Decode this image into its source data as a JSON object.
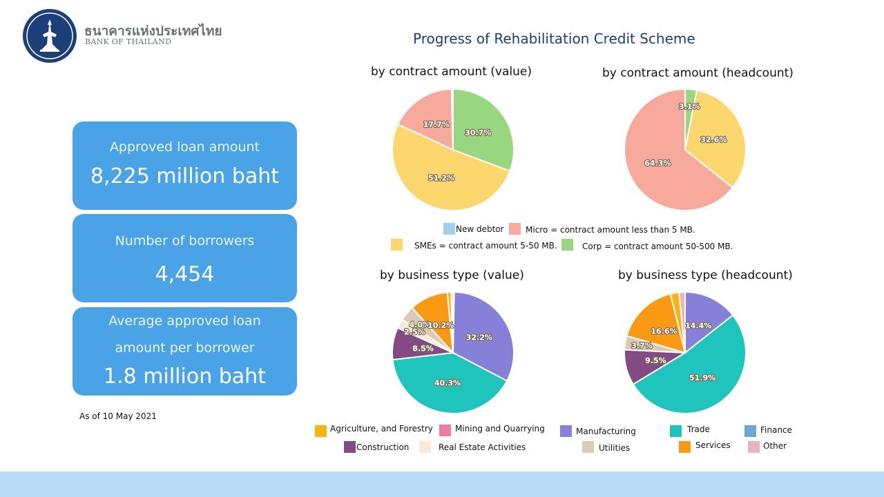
{
  "header": {
    "bank_name_th": "ธนาคารแห่งประเทศไทย",
    "bank_name_en": "BANK OF THAILAND",
    "title": "Progress of Rehabilitation Credit Scheme"
  },
  "stats": [
    {
      "label": "Approved loan amount",
      "value": "8,225 million baht"
    },
    {
      "label": "Number of borrowers",
      "value": "4,454"
    },
    {
      "label_line1": "Average approved loan",
      "label_line2": "amount per borrower",
      "value": "1.8 million baht"
    }
  ],
  "as_of": "As of 10 May 2021",
  "legend_size": [
    {
      "label": "New debtor",
      "color": "#9fd1ee"
    },
    {
      "label": "Micro = contract amount less than 5 MB.",
      "color": "#f7a99c"
    },
    {
      "label": "SMEs = contract amount 5-50 MB.",
      "color": "#fcd76e"
    },
    {
      "label": "Corp = contract amount 50-500 MB.",
      "color": "#98d67f"
    }
  ],
  "legend_business": [
    {
      "label": "Agriculture, and Forestry",
      "color": "#fbb40f"
    },
    {
      "label": "Mining and Quarrying",
      "color": "#f07ca5"
    },
    {
      "label": "Manufacturing",
      "color": "#8780d8"
    },
    {
      "label": "Trade",
      "color": "#1fc4bd"
    },
    {
      "label": "Finance",
      "color": "#6aa6d6"
    },
    {
      "label": "Construction",
      "color": "#844a86"
    },
    {
      "label": "Real Estate Activities",
      "color": "#fbe9d8"
    },
    {
      "label": "Utilities",
      "color": "#dccbb2"
    },
    {
      "label": "Services",
      "color": "#f99a12"
    },
    {
      "label": "Other",
      "color": "#e9b4bd"
    }
  ],
  "chart_data": [
    {
      "type": "pie",
      "title": "by contract amount (value)",
      "series": [
        {
          "name": "Corp",
          "value": 30.7,
          "label": "30.7%",
          "color": "#98d67f"
        },
        {
          "name": "SMEs",
          "value": 51.2,
          "label": "51.2%",
          "color": "#fcd76e"
        },
        {
          "name": "Micro",
          "value": 17.7,
          "label": "17.7%",
          "color": "#f7a99c"
        },
        {
          "name": "New debtor",
          "value": 0.4,
          "label": "",
          "color": "#9fd1ee"
        }
      ]
    },
    {
      "type": "pie",
      "title": "by contract amount (headcount)",
      "series": [
        {
          "name": "Corp",
          "value": 3.1,
          "label": "3.1%",
          "color": "#98d67f"
        },
        {
          "name": "SMEs",
          "value": 32.6,
          "label": "32.6%",
          "color": "#fcd76e"
        },
        {
          "name": "Micro",
          "value": 64.3,
          "label": "64.3%",
          "color": "#f7a99c"
        }
      ]
    },
    {
      "type": "pie",
      "title": "by business type (value)",
      "series": [
        {
          "name": "Finance",
          "value": 0.3,
          "label": "",
          "color": "#6aa6d6"
        },
        {
          "name": "Manufacturing",
          "value": 32.2,
          "label": "32.2%",
          "color": "#8780d8"
        },
        {
          "name": "Trade",
          "value": 40.3,
          "label": "40.3%",
          "color": "#1fc4bd"
        },
        {
          "name": "Construction",
          "value": 8.5,
          "label": "8.5%",
          "color": "#844a86"
        },
        {
          "name": "Real Estate Activities",
          "value": 2.5,
          "label": "2.5%",
          "color": "#fbe9d8"
        },
        {
          "name": "Utilities",
          "value": 4.0,
          "label": "4.0%",
          "color": "#dccbb2"
        },
        {
          "name": "Services",
          "value": 10.2,
          "label": "10.2%",
          "color": "#f99a12"
        },
        {
          "name": "Agriculture, and Forestry",
          "value": 1.0,
          "label": "",
          "color": "#fbb40f"
        },
        {
          "name": "Other",
          "value": 0.5,
          "label": "",
          "color": "#e9b4bd"
        }
      ]
    },
    {
      "type": "pie",
      "title": "by business type (headcount)",
      "series": [
        {
          "name": "Manufacturing",
          "value": 14.4,
          "label": "14.4%",
          "color": "#8780d8"
        },
        {
          "name": "Trade",
          "value": 51.9,
          "label": "51.9%",
          "color": "#1fc4bd"
        },
        {
          "name": "Construction",
          "value": 9.5,
          "label": "9.5%",
          "color": "#844a86"
        },
        {
          "name": "Utilities",
          "value": 3.7,
          "label": "3.7%",
          "color": "#dccbb2"
        },
        {
          "name": "Services",
          "value": 16.6,
          "label": "16.6%",
          "color": "#f99a12"
        },
        {
          "name": "Agriculture, and Forestry",
          "value": 2.3,
          "label": "",
          "color": "#fbb40f"
        },
        {
          "name": "Other",
          "value": 1.6,
          "label": "",
          "color": "#e9b4bd"
        }
      ]
    }
  ]
}
